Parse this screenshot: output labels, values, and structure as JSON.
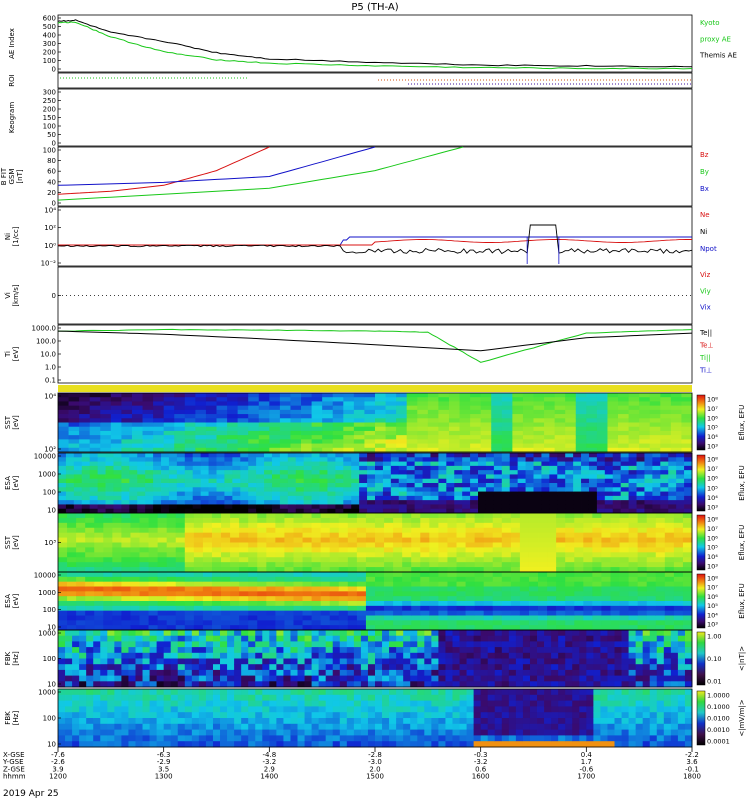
{
  "title": "P5 (TH-A)",
  "date": "2019 Apr 25",
  "colors": {
    "red": "#d81010",
    "green": "#18c818",
    "blue": "#1010c8",
    "black": "#000000"
  },
  "panels": [
    {
      "key": "ae",
      "ylabel": [
        "AE Index"
      ],
      "ticks": [
        "600",
        "500",
        "400",
        "300",
        "200",
        "100",
        "0"
      ],
      "legend": [
        {
          "text": "Kyoto",
          "color": "green"
        },
        {
          "text": "proxy AE",
          "color": "green"
        },
        {
          "text": "Themis AE",
          "color": "black"
        }
      ]
    },
    {
      "key": "roi",
      "ylabel": [
        "ROI"
      ],
      "ticks": [],
      "legend": []
    },
    {
      "key": "kgm",
      "ylabel": [
        "Keogram"
      ],
      "ticks": [
        "300",
        "250",
        "200",
        "150",
        "100",
        "50",
        "0"
      ],
      "legend": []
    },
    {
      "key": "bgsm",
      "ylabel": [
        "B FIT",
        "GSM",
        "[nT]"
      ],
      "ticks": [
        "100",
        "80",
        "60",
        "40",
        "20",
        "0"
      ],
      "legend": [
        {
          "text": "Bz",
          "color": "red"
        },
        {
          "text": "By",
          "color": "green"
        },
        {
          "text": "Bx",
          "color": "blue"
        }
      ]
    },
    {
      "key": "ni",
      "ylabel": [
        "Ni",
        "[1/cc]"
      ],
      "ticks": [
        "10⁴",
        "10²",
        "10⁰",
        "10⁻²"
      ],
      "legend": [
        {
          "text": "Ne",
          "color": "red"
        },
        {
          "text": "Ni",
          "color": "black"
        },
        {
          "text": "Npot",
          "color": "blue"
        }
      ]
    },
    {
      "key": "vi",
      "ylabel": [
        "Vi",
        "[km/s]"
      ],
      "ticks": [
        "0"
      ],
      "legend": [
        {
          "text": "Viz",
          "color": "red"
        },
        {
          "text": "Viy",
          "color": "green"
        },
        {
          "text": "Vix",
          "color": "blue"
        }
      ]
    },
    {
      "key": "ti",
      "ylabel": [
        "Ti",
        "[eV]"
      ],
      "ticks": [
        "1000.0",
        "100.0",
        "10.0",
        "1.0",
        "0.1"
      ],
      "legend": [
        {
          "text": "Te||",
          "color": "black"
        },
        {
          "text": "Te⊥",
          "color": "red"
        },
        {
          "text": "Ti||",
          "color": "green"
        },
        {
          "text": "Ti⊥",
          "color": "blue"
        }
      ]
    },
    {
      "key": "sste",
      "ylabel": [
        "SST",
        "[eV]"
      ],
      "ticks": [
        "10⁴",
        "10²"
      ],
      "legend": []
    },
    {
      "key": "esae",
      "ylabel": [
        "ESA",
        "[eV]"
      ],
      "ticks": [
        "10000",
        "1000",
        "100",
        "10"
      ],
      "legend": []
    },
    {
      "key": "ssti",
      "ylabel": [
        "SST",
        "[eV]"
      ],
      "ticks": [
        "10³"
      ],
      "legend": []
    },
    {
      "key": "esai",
      "ylabel": [
        "ESA",
        "[eV]"
      ],
      "ticks": [
        "10000",
        "1000",
        "100",
        "10"
      ],
      "legend": []
    },
    {
      "key": "fbkb",
      "ylabel": [
        "FBK",
        "[Hz]"
      ],
      "ticks": [
        "1000",
        "100",
        "10"
      ],
      "legend": []
    },
    {
      "key": "fbke",
      "ylabel": [
        "FBK",
        "[Hz]"
      ],
      "ticks": [
        "1000",
        "100",
        "10"
      ],
      "legend": []
    }
  ],
  "colorbars": [
    {
      "panel": "sste",
      "label": "Eflux, EFU",
      "ticks": [
        "10⁸",
        "10⁷",
        "10⁶",
        "10⁵",
        "10⁴",
        "10³"
      ]
    },
    {
      "panel": "esae",
      "label": "Eflux, EFU",
      "ticks": [
        "10⁸",
        "10⁷",
        "10⁶",
        "10⁵",
        "10⁴",
        "10³"
      ]
    },
    {
      "panel": "ssti",
      "label": "Eflux, EFU",
      "ticks": [
        "10⁸",
        "10⁷",
        "10⁶",
        "10⁵",
        "10⁴",
        "10³"
      ]
    },
    {
      "panel": "esai",
      "label": "Eflux, EFU",
      "ticks": [
        "10⁸",
        "10⁷",
        "10⁶",
        "10⁵",
        "10⁴",
        "10³"
      ]
    },
    {
      "panel": "fbkb",
      "label": "<|nT|>",
      "ticks": [
        "1.00",
        "0.10",
        "0.01"
      ]
    },
    {
      "panel": "fbke",
      "label": "<|mV/m|>",
      "ticks": [
        "1.0000",
        "0.1000",
        "0.0100",
        "0.0010",
        "0.0001"
      ]
    }
  ],
  "xaxis": {
    "row_labels": [
      "X-GSE",
      "Y-GSE",
      "Z-GSE",
      "hhmm"
    ],
    "columns": [
      {
        "vals": [
          "-7.6",
          "-2.6",
          "3.9",
          "1200"
        ]
      },
      {
        "vals": [
          "-6.3",
          "-2.9",
          "3.5",
          "1300"
        ]
      },
      {
        "vals": [
          "-4.8",
          "-3.2",
          "2.9",
          "1400"
        ]
      },
      {
        "vals": [
          "-2.8",
          "-3.0",
          "2.0",
          "1500"
        ]
      },
      {
        "vals": [
          "-0.3",
          "-3.2",
          "0.6",
          "1600"
        ]
      },
      {
        "vals": [
          "0.4",
          "1.7",
          "-0.6",
          "1700"
        ]
      },
      {
        "vals": [
          "-2.2",
          "3.6",
          "-0.1",
          "1800"
        ]
      }
    ]
  },
  "chart_data": {
    "type": "line",
    "title": "P5 (TH-A)",
    "x_unit": "hhmm",
    "x_range": [
      "1200",
      "1800"
    ],
    "series": [
      {
        "name": "Kyoto proxy AE",
        "panel": "AE Index",
        "x": [
          1200,
          1210,
          1230,
          1300,
          1330,
          1400,
          1500,
          1600,
          1700,
          1800
        ],
        "values": [
          560,
          570,
          400,
          230,
          140,
          100,
          70,
          50,
          40,
          40
        ]
      },
      {
        "name": "Themis AE",
        "panel": "AE Index",
        "x": [
          1200,
          1210,
          1230,
          1300,
          1330,
          1400,
          1500,
          1600,
          1700,
          1800
        ],
        "values": [
          580,
          590,
          450,
          350,
          220,
          150,
          110,
          80,
          70,
          60
        ]
      },
      {
        "name": "Bz",
        "panel": "B FIT GSM",
        "x": [
          1200,
          1230,
          1300,
          1330,
          1400
        ],
        "values": [
          20,
          25,
          35,
          60,
          100
        ]
      },
      {
        "name": "By",
        "panel": "B FIT GSM",
        "x": [
          1200,
          1300,
          1400,
          1500,
          1550
        ],
        "values": [
          10,
          20,
          30,
          60,
          100
        ]
      },
      {
        "name": "Bx",
        "panel": "B FIT GSM",
        "x": [
          1200,
          1300,
          1400,
          1500
        ],
        "values": [
          35,
          40,
          50,
          100
        ]
      },
      {
        "name": "Ti||",
        "panel": "Ti",
        "x": [
          1200,
          1300,
          1400,
          1500,
          1530,
          1600,
          1700,
          1800
        ],
        "values": [
          1500,
          2000,
          1800,
          1500,
          1200,
          3,
          1000,
          2000
        ]
      },
      {
        "name": "Te||",
        "panel": "Ti",
        "x": [
          1200,
          1300,
          1400,
          1500,
          1600,
          1700,
          1800
        ],
        "values": [
          1500,
          800,
          300,
          100,
          30,
          400,
          1000
        ]
      }
    ]
  }
}
